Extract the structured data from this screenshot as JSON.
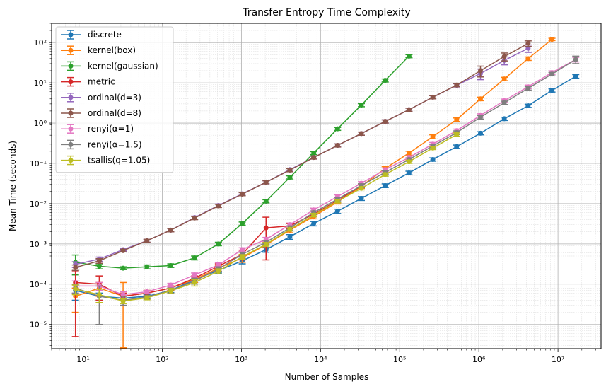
{
  "chart_data": {
    "type": "line",
    "title": "Transfer Entropy Time Complexity",
    "xlabel": "Number of Samples",
    "ylabel": "Mean Time (seconds)",
    "xscale": "log",
    "yscale": "log",
    "xlim": [
      4,
      35000000
    ],
    "ylim": [
      2.5e-06,
      300
    ],
    "grid": true,
    "legend_position": "top-left",
    "x_tick_labels": [
      "10¹",
      "10²",
      "10³",
      "10⁴",
      "10⁵",
      "10⁶",
      "10⁷"
    ],
    "y_tick_labels": [
      "10⁻⁵",
      "10⁻⁴",
      "10⁻³",
      "10⁻²",
      "10⁻¹",
      "10⁰",
      "10¹",
      "10²"
    ],
    "series": [
      {
        "name": "discrete",
        "color": "#1f77b4",
        "marker": "circle",
        "x": [
          8,
          16,
          32,
          64,
          128,
          256,
          512,
          1024,
          2048,
          4096,
          8192,
          16384,
          32768,
          65536,
          131072,
          262144,
          524288,
          1048576,
          2097152,
          4194304,
          8388608,
          16777216
        ],
        "y": [
          7e-05,
          5e-05,
          4.5e-05,
          5e-05,
          7e-05,
          0.00013,
          0.00022,
          0.00038,
          0.00072,
          0.0015,
          0.0032,
          0.0065,
          0.0135,
          0.028,
          0.058,
          0.125,
          0.26,
          0.56,
          1.28,
          2.7,
          6.5,
          14.5
        ],
        "err": [
          3e-05,
          1e-05,
          5e-06,
          5e-06,
          8e-06,
          2e-05,
          3e-05,
          6e-05,
          0.0001,
          0.0002,
          0.0004,
          0.0008,
          0.0015,
          0.003,
          0.006,
          0.012,
          0.025,
          0.05,
          0.12,
          0.25,
          0.6,
          1.5
        ]
      },
      {
        "name": "kernel(box)",
        "color": "#ff7f0e",
        "marker": "circle",
        "x": [
          8,
          16,
          32,
          64,
          128,
          256,
          512,
          1024,
          2048,
          4096,
          8192,
          16384,
          32768,
          65536,
          131072,
          262144,
          524288,
          1048576,
          2097152,
          4194304,
          8388608
        ],
        "y": [
          5e-05,
          8e-05,
          5e-05,
          6e-05,
          8e-05,
          0.00013,
          0.00025,
          0.00045,
          0.00095,
          0.0022,
          0.0048,
          0.011,
          0.027,
          0.075,
          0.18,
          0.46,
          1.22,
          4.0,
          12.5,
          40,
          120
        ],
        "err": [
          3e-05,
          3e-05,
          6e-05,
          1e-05,
          1e-05,
          2e-05,
          4e-05,
          0.0001,
          0.00015,
          0.0003,
          0.0006,
          0.0012,
          0.003,
          0.008,
          0.02,
          0.05,
          0.12,
          0.4,
          1.2,
          4,
          8
        ]
      },
      {
        "name": "kernel(gaussian)",
        "color": "#2ca02c",
        "marker": "circle",
        "x": [
          8,
          16,
          32,
          64,
          128,
          256,
          512,
          1024,
          2048,
          4096,
          8192,
          16384,
          32768,
          65536,
          131072
        ],
        "y": [
          0.00035,
          0.00028,
          0.00025,
          0.00027,
          0.00029,
          0.00045,
          0.001,
          0.0032,
          0.0115,
          0.045,
          0.18,
          0.72,
          2.8,
          11.5,
          46
        ],
        "err": [
          0.00018,
          4e-05,
          2e-05,
          3e-05,
          3e-05,
          5e-05,
          0.0001,
          0.0003,
          0.001,
          0.004,
          0.015,
          0.06,
          0.25,
          1.0,
          4
        ]
      },
      {
        "name": "metric",
        "color": "#d62728",
        "marker": "circle",
        "x": [
          8,
          16,
          32,
          64,
          128,
          256,
          512,
          1024,
          2048,
          4096,
          8192,
          16384,
          32768
        ],
        "y": [
          0.00011,
          0.0001,
          5e-05,
          6e-05,
          8e-05,
          0.00014,
          0.00028,
          0.00055,
          0.0025,
          0.0028,
          0.0055,
          0.012,
          0.028
        ],
        "err": [
          0.000105,
          6e-05,
          1e-05,
          1e-05,
          1e-05,
          2e-05,
          4e-05,
          0.00015,
          0.0021,
          0.0004,
          0.0008,
          0.0015,
          0.003
        ]
      },
      {
        "name": "ordinal(d=3)",
        "color": "#9467bd",
        "marker": "circle",
        "x": [
          8,
          16,
          32,
          64,
          128,
          256,
          512,
          1024,
          2048,
          4096,
          8192,
          16384,
          32768,
          65536,
          131072,
          262144,
          524288,
          1048576,
          2097152,
          4194304
        ],
        "y": [
          0.00031,
          0.00042,
          0.00072,
          0.0012,
          0.0022,
          0.0045,
          0.009,
          0.0175,
          0.034,
          0.07,
          0.14,
          0.28,
          0.55,
          1.1,
          2.15,
          4.4,
          8.7,
          17,
          36,
          72
        ],
        "err": [
          5e-05,
          5e-05,
          5e-05,
          0.0001,
          0.0002,
          0.0004,
          0.0008,
          0.0015,
          0.003,
          0.006,
          0.012,
          0.025,
          0.05,
          0.1,
          0.2,
          0.4,
          0.8,
          5,
          8,
          15
        ]
      },
      {
        "name": "ordinal(d=8)",
        "color": "#8c564b",
        "marker": "circle",
        "x": [
          8,
          16,
          32,
          64,
          128,
          256,
          512,
          1024,
          2048,
          4096,
          8192,
          16384,
          32768,
          65536,
          131072,
          262144,
          524288,
          1048576,
          2097152,
          4194304
        ],
        "y": [
          0.00026,
          0.00038,
          0.00068,
          0.0012,
          0.0022,
          0.0044,
          0.0088,
          0.0172,
          0.034,
          0.068,
          0.14,
          0.28,
          0.55,
          1.1,
          2.15,
          4.4,
          8.8,
          20,
          45,
          95
        ],
        "err": [
          4e-05,
          5e-05,
          5e-05,
          0.0001,
          0.0002,
          0.0004,
          0.0008,
          0.0015,
          0.003,
          0.006,
          0.012,
          0.025,
          0.05,
          0.1,
          0.2,
          0.4,
          0.8,
          6,
          10,
          15
        ]
      },
      {
        "name": "renyi(α=1)",
        "color": "#e377c2",
        "marker": "circle",
        "x": [
          8,
          16,
          32,
          64,
          128,
          256,
          512,
          1024,
          2048,
          4096,
          8192,
          16384,
          32768,
          65536,
          131072,
          262144,
          524288,
          1048576,
          2097152,
          4194304,
          8388608,
          16777216
        ],
        "y": [
          9e-05,
          9e-05,
          5.5e-05,
          6.5e-05,
          9.5e-05,
          0.00017,
          0.0003,
          0.00072,
          0.0013,
          0.003,
          0.007,
          0.015,
          0.032,
          0.07,
          0.14,
          0.3,
          0.65,
          1.55,
          3.6,
          8,
          18,
          38
        ],
        "err": [
          3e-05,
          2e-05,
          1e-05,
          5e-06,
          1e-05,
          2e-05,
          4e-05,
          8e-05,
          0.00015,
          0.0003,
          0.0007,
          0.0015,
          0.003,
          0.007,
          0.014,
          0.03,
          0.06,
          0.15,
          0.35,
          0.8,
          1.8,
          5
        ]
      },
      {
        "name": "renyi(α=1.5)",
        "color": "#7f7f7f",
        "marker": "circle",
        "x": [
          8,
          16,
          32,
          64,
          128,
          256,
          512,
          1024,
          2048,
          4096,
          8192,
          16384,
          32768,
          65536,
          131072,
          262144,
          524288,
          1048576,
          2097152,
          4194304,
          8388608,
          16777216
        ],
        "y": [
          8e-05,
          5e-05,
          4e-05,
          4.8e-05,
          7e-05,
          0.00012,
          0.00024,
          0.00055,
          0.0011,
          0.0025,
          0.006,
          0.013,
          0.028,
          0.06,
          0.125,
          0.27,
          0.58,
          1.4,
          3.2,
          7.3,
          16.5,
          38
        ],
        "err": [
          2e-05,
          4e-05,
          1e-05,
          5e-06,
          1e-05,
          2e-05,
          3e-05,
          7e-05,
          0.00012,
          0.0003,
          0.0006,
          0.0013,
          0.003,
          0.006,
          0.012,
          0.027,
          0.06,
          0.14,
          0.3,
          0.7,
          1.6,
          8
        ]
      },
      {
        "name": "tsallis(q=1.05)",
        "color": "#bcbd22",
        "marker": "circle",
        "x": [
          8,
          16,
          32,
          64,
          128,
          256,
          512,
          1024,
          2048,
          4096,
          8192,
          16384,
          32768,
          65536,
          131072,
          262144,
          524288
        ],
        "y": [
          7.5e-05,
          5.5e-05,
          3.8e-05,
          4.6e-05,
          6.8e-05,
          0.00011,
          0.00021,
          0.00048,
          0.00098,
          0.0023,
          0.0052,
          0.0115,
          0.024,
          0.053,
          0.11,
          0.24,
          0.52
        ],
        "err": [
          2e-05,
          2e-05,
          5e-06,
          5e-06,
          1e-05,
          2e-05,
          3e-05,
          6e-05,
          0.0001,
          0.0002,
          0.0005,
          0.001,
          0.002,
          0.005,
          0.01,
          0.02,
          0.05
        ]
      }
    ]
  }
}
